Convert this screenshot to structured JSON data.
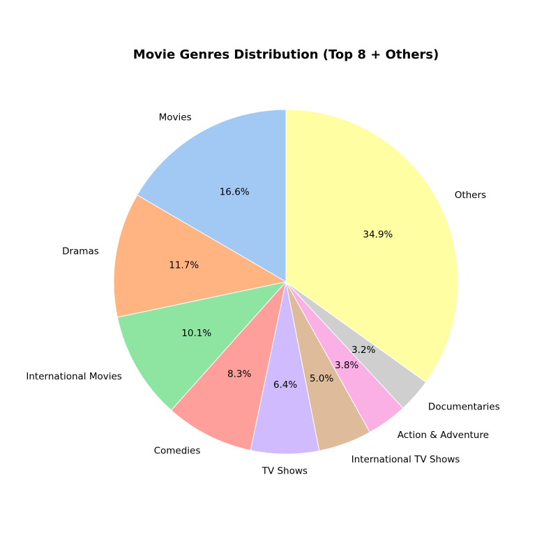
{
  "chart_data": {
    "type": "pie",
    "title": "Movie Genres Distribution (Top 8 + Others)",
    "slices": [
      {
        "label": "Movies",
        "value": 16.6,
        "pct_label": "16.6%",
        "color": "#a1c9f4"
      },
      {
        "label": "Dramas",
        "value": 11.7,
        "pct_label": "11.7%",
        "color": "#ffb482"
      },
      {
        "label": "International Movies",
        "value": 10.1,
        "pct_label": "10.1%",
        "color": "#8de5a1"
      },
      {
        "label": "Comedies",
        "value": 8.3,
        "pct_label": "8.3%",
        "color": "#ff9f9b"
      },
      {
        "label": "TV Shows",
        "value": 6.4,
        "pct_label": "6.4%",
        "color": "#d0bbff"
      },
      {
        "label": "International TV Shows",
        "value": 5.0,
        "pct_label": "5.0%",
        "color": "#debb9b"
      },
      {
        "label": "Action & Adventure",
        "value": 3.8,
        "pct_label": "3.8%",
        "color": "#fab0e4"
      },
      {
        "label": "Documentaries",
        "value": 3.2,
        "pct_label": "3.2%",
        "color": "#cfcfcf"
      },
      {
        "label": "Others",
        "value": 34.9,
        "pct_label": "34.9%",
        "color": "#fffea3"
      }
    ],
    "start_angle_deg": 90,
    "direction": "counterclockwise",
    "legend": "none"
  }
}
